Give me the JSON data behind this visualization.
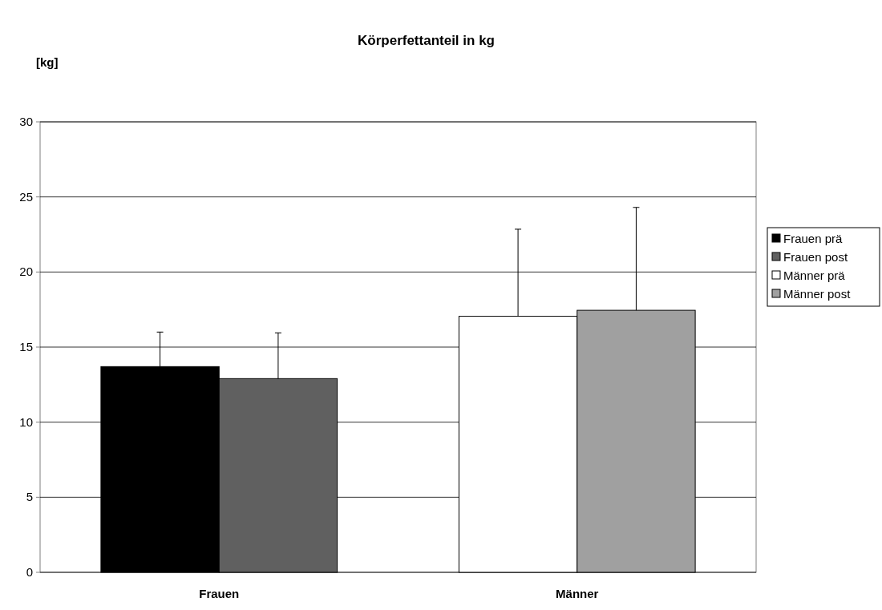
{
  "chart_data": {
    "type": "bar",
    "title": "Körperfettanteil in kg",
    "ylabel": "[kg]",
    "categories": [
      "Frauen",
      "Männer"
    ],
    "series": [
      {
        "name": "Frauen prä",
        "color": "#000000",
        "values": [
          13.7,
          null
        ],
        "errors": [
          2.3,
          null
        ]
      },
      {
        "name": "Frauen post",
        "color": "#606060",
        "values": [
          12.9,
          null
        ],
        "errors": [
          3.05,
          null
        ]
      },
      {
        "name": "Männer prä",
        "color": "#ffffff",
        "values": [
          null,
          17.05
        ],
        "errors": [
          null,
          5.8
        ]
      },
      {
        "name": "Männer post",
        "color": "#a0a0a0",
        "values": [
          null,
          17.45
        ],
        "errors": [
          null,
          6.85
        ]
      }
    ],
    "ylim": [
      0,
      30
    ],
    "yticks": [
      0,
      5,
      10,
      15,
      20,
      25,
      30
    ],
    "grid": "y",
    "legend": "right"
  }
}
